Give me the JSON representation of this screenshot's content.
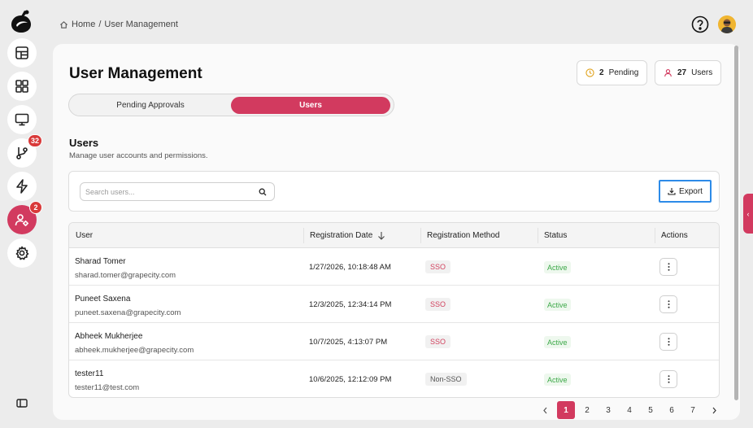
{
  "breadcrumb": {
    "home": "Home",
    "separator": "/",
    "current": "User Management"
  },
  "rail": {
    "items": [
      {
        "icon": "dashboard-grid-icon"
      },
      {
        "icon": "apps-icon"
      },
      {
        "icon": "monitor-icon"
      },
      {
        "icon": "git-branch-icon",
        "badge": "32"
      },
      {
        "icon": "lightning-icon"
      },
      {
        "icon": "user-settings-icon",
        "badge": "2",
        "active": true
      },
      {
        "icon": "gear-icon"
      }
    ],
    "bottom_icon": "sidebar-toggle-icon"
  },
  "page": {
    "title": "User Management"
  },
  "stats": {
    "pending": {
      "count": "2",
      "label": "Pending"
    },
    "users": {
      "count": "27",
      "label": "Users"
    }
  },
  "tabs": {
    "pending_label": "Pending Approvals",
    "users_label": "Users",
    "active": "Users"
  },
  "section": {
    "title": "Users",
    "subtitle": "Manage user accounts and permissions."
  },
  "search": {
    "placeholder": "Search users...",
    "value": ""
  },
  "export_label": "Export",
  "table": {
    "headers": {
      "user": "User",
      "date": "Registration Date",
      "method": "Registration Method",
      "status": "Status",
      "actions": "Actions"
    },
    "sort": {
      "column": "Registration Date",
      "direction": "descending"
    },
    "rows": [
      {
        "name": "Sharad Tomer",
        "email": "sharad.tomer@grapecity.com",
        "date": "1/27/2026, 10:18:48 AM",
        "method": "SSO",
        "status": "Active"
      },
      {
        "name": "Puneet Saxena",
        "email": "puneet.saxena@grapecity.com",
        "date": "12/3/2025, 12:34:14 PM",
        "method": "SSO",
        "status": "Active"
      },
      {
        "name": "Abheek Mukherjee",
        "email": "abheek.mukherjee@grapecity.com",
        "date": "10/7/2025, 4:13:07 PM",
        "method": "SSO",
        "status": "Active"
      },
      {
        "name": "tester11",
        "email": "tester11@test.com",
        "date": "10/6/2025, 12:12:09 PM",
        "method": "Non-SSO",
        "status": "Active"
      }
    ]
  },
  "pagination": {
    "pages": [
      "1",
      "2",
      "3",
      "4",
      "5",
      "6",
      "7"
    ],
    "current": "1"
  },
  "colors": {
    "accent": "#d23a5f",
    "active_green": "#3ca848",
    "focus_blue": "#2d8be8",
    "badge_red": "#d93a3a"
  }
}
